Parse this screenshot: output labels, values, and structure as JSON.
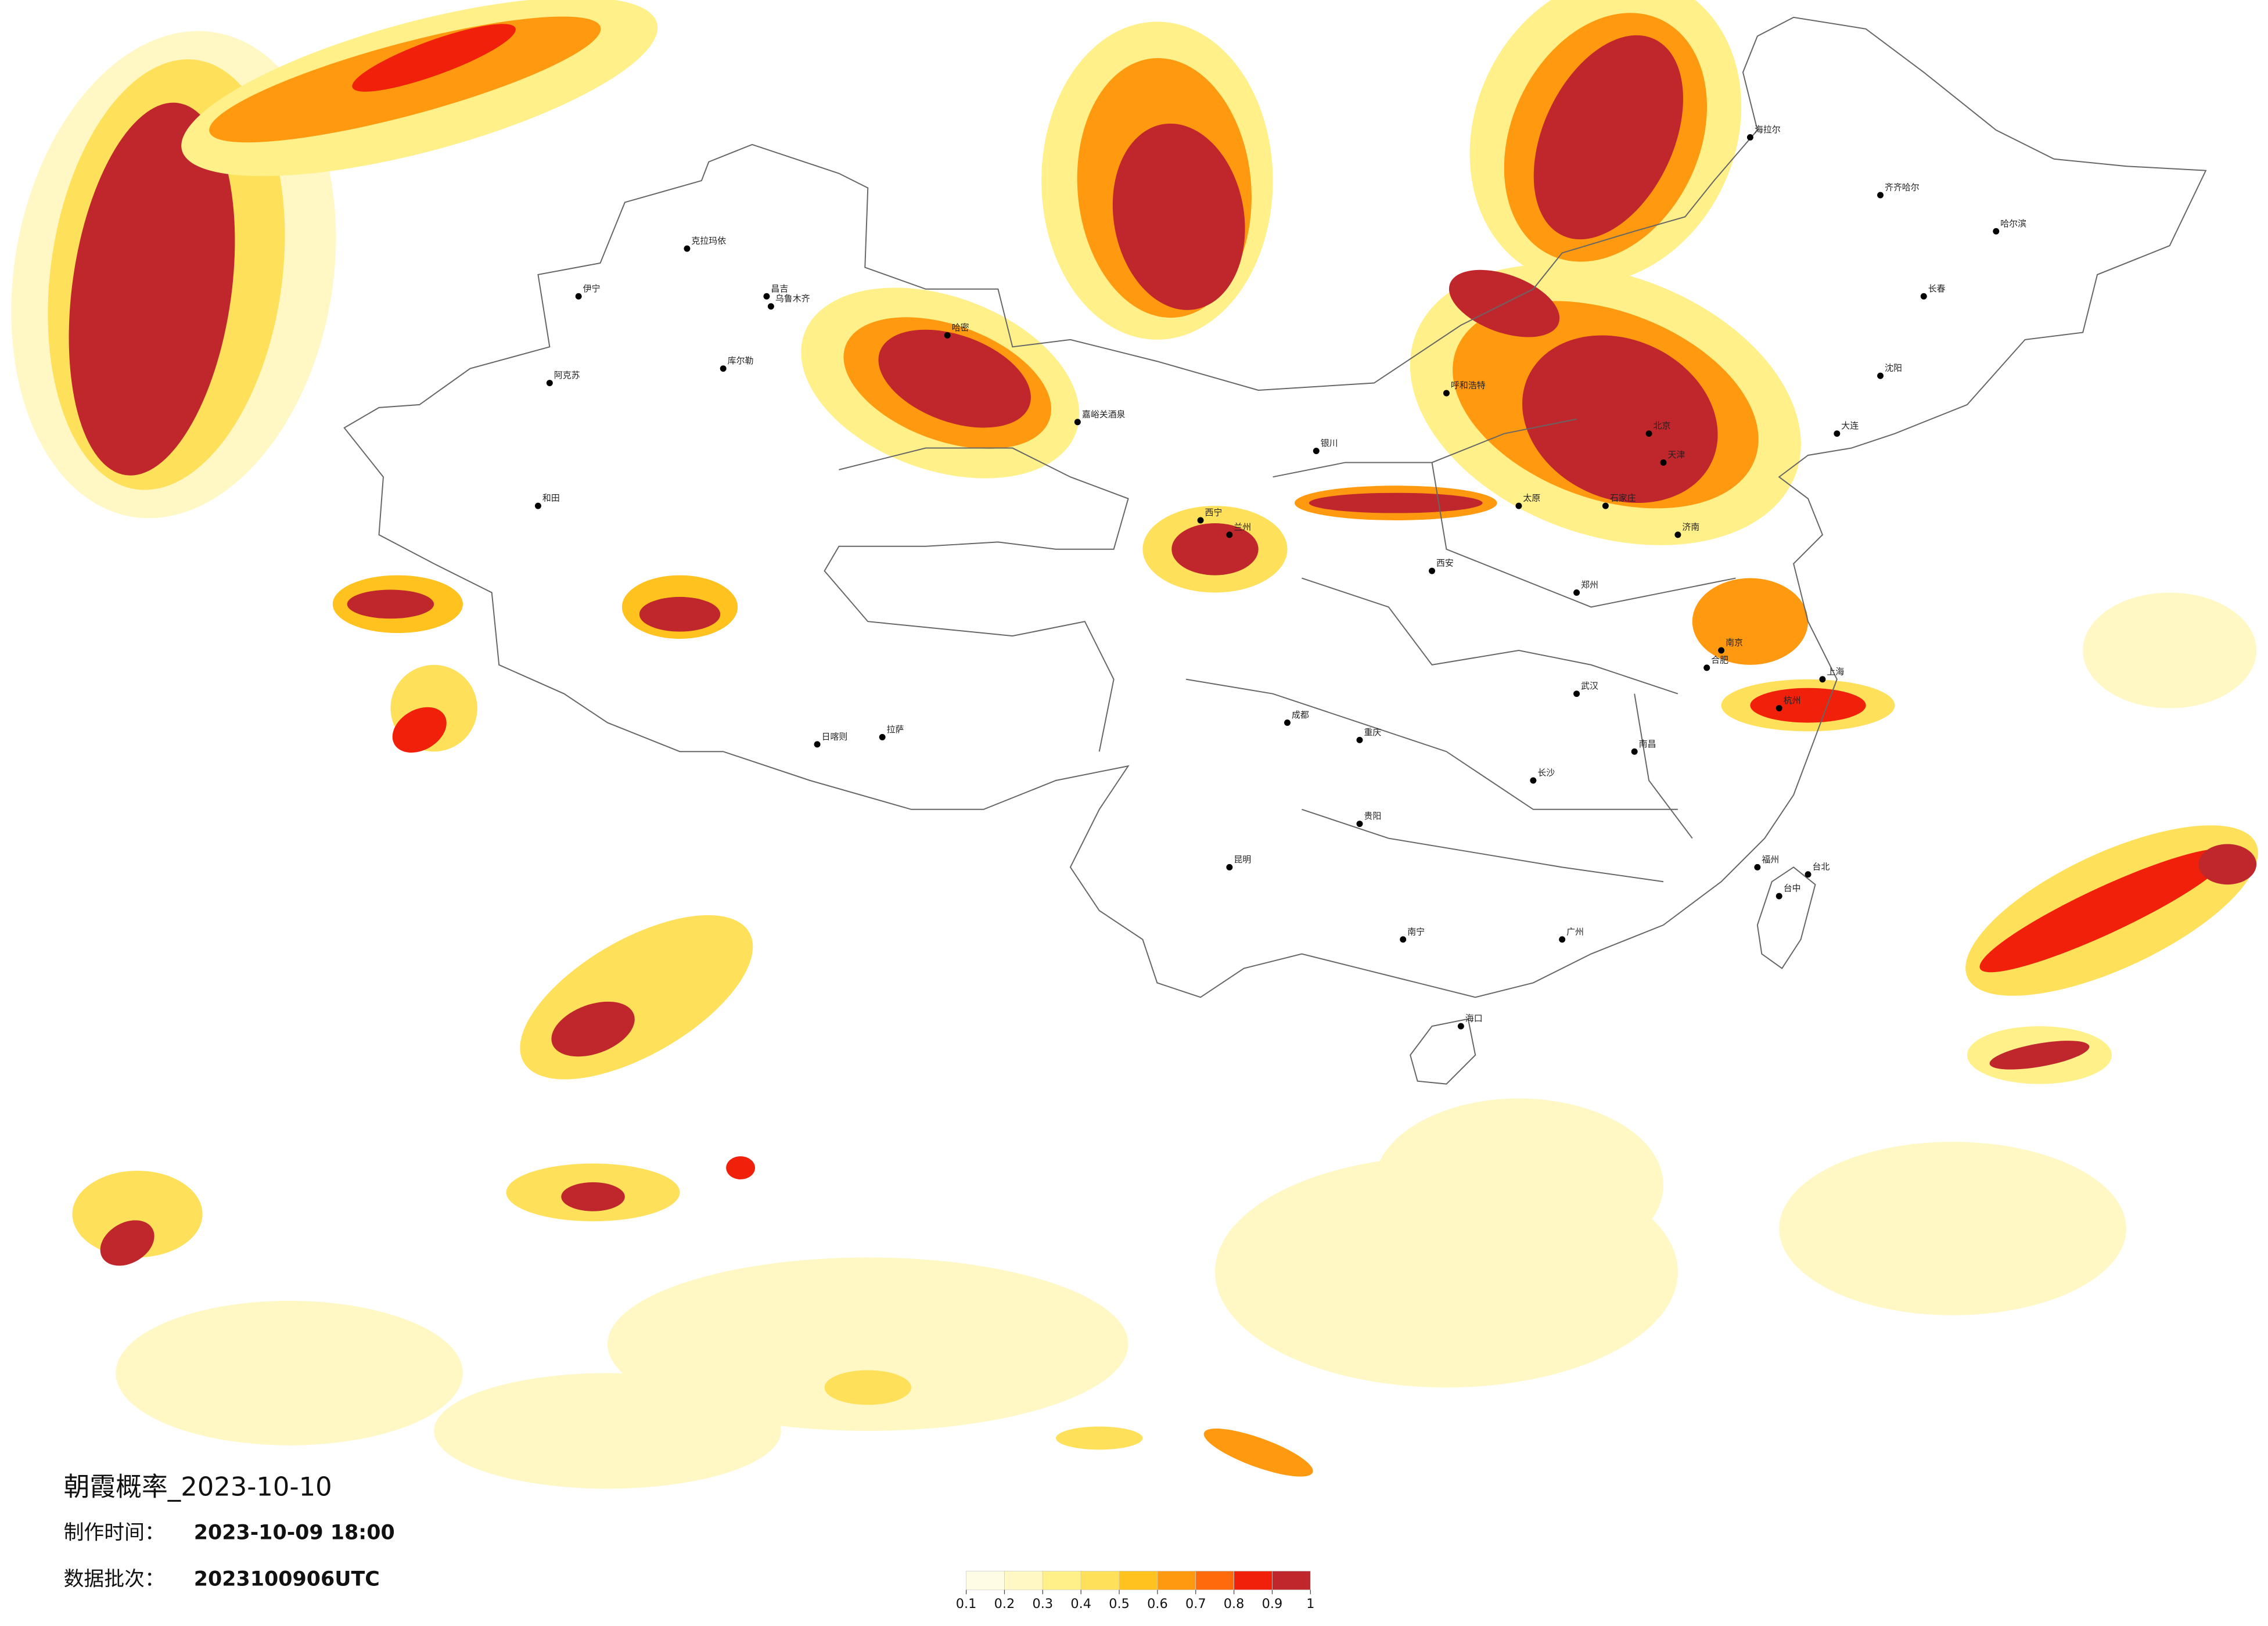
{
  "header": {
    "title": "朝霞概率_2023-10-10",
    "made_label": "制作时间：",
    "made_time": "2023-10-09 18:00",
    "batch_label": "数据批次：",
    "batch": "2023100906UTC"
  },
  "legend": {
    "colors": [
      "#fffce6",
      "#fff8c4",
      "#fff08a",
      "#ffe05a",
      "#ffc21e",
      "#ff9a10",
      "#ff6a0c",
      "#f0200a",
      "#c0272d"
    ],
    "ticks": [
      0.1,
      0.2,
      0.3,
      0.4,
      0.5,
      0.6,
      0.7,
      0.8,
      0.9,
      1
    ]
  },
  "cities": [
    "克拉玛依",
    "伊宁",
    "昌吉",
    "乌鲁木齐",
    "库尔勒",
    "阿克苏",
    "和田",
    "哈密",
    "嘉峪关酒泉",
    "西宁",
    "兰州",
    "银川",
    "呼和浩特",
    "北京",
    "天津",
    "石家庄",
    "太原",
    "郑州",
    "西安",
    "济南",
    "南京",
    "上海",
    "杭州",
    "合肥",
    "武汉",
    "长沙",
    "南昌",
    "福州",
    "广州",
    "南宁",
    "海口",
    "贵阳",
    "昆明",
    "成都",
    "重庆",
    "拉萨",
    "日喀则",
    "哈尔滨",
    "长春",
    "沈阳",
    "大连",
    "海拉尔",
    "齐齐哈尔",
    "台北",
    "台中"
  ]
}
